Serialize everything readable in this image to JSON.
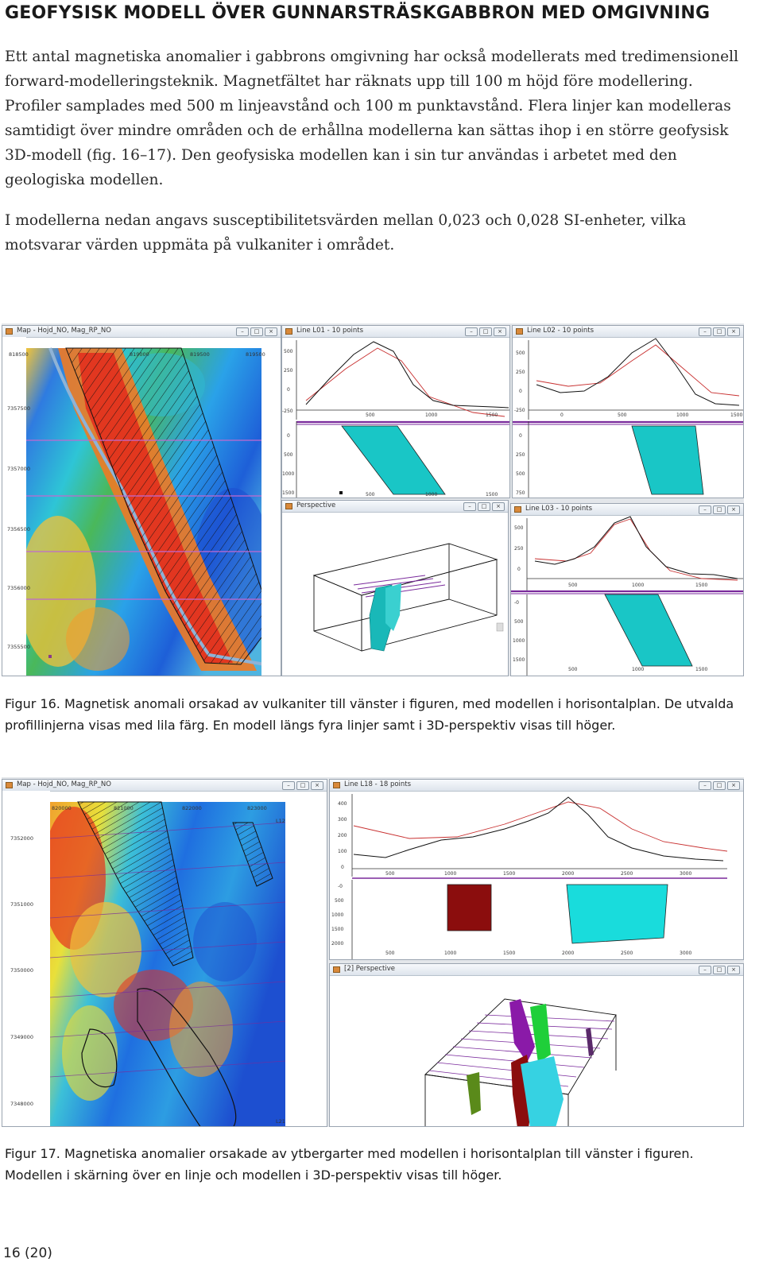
{
  "heading": "GEOFYSISK MODELL ÖVER GUNNARSTRÄSKGABBRON MED OMGIVNING",
  "paragraphs": [
    "Ett antal magnetiska anomalier i gabbrons omgivning har också modellerats med tredimensionell forward-modelleringsteknik. Magnetfältet har räknats upp till 100 m höjd före modellering. Profiler samplades med 500 m linjeavstånd och 100 m punktavstånd. Flera linjer kan modelleras samtidigt över mindre områden och de erhållna modellerna kan sättas ihop i en större geofysisk 3D-modell (fig. 16–17). Den geofysiska modellen kan i sin tur användas i arbetet med den geologiska modellen.",
    "I modellerna nedan angavs susceptibilitetsvärden mellan 0,023 och 0,028 SI-enheter, vilka motsvarar värden uppmäta på vulkaniter i området."
  ],
  "figure16": {
    "caption": "Figur 16. Magnetisk anomali orsakad av vulkaniter till vänster i figuren, med modellen i horisontalplan. De utvalda profillinjerna visas med lila färg. En modell längs fyra linjer samt i 3D-perspektiv visas till höger.",
    "map": {
      "title": "Map - Hojd_NO, Mag_RP_NO",
      "x_ticks": [
        "818500",
        "819000",
        "819500",
        "819500"
      ],
      "y_ticks": [
        "7357500",
        "7357000",
        "7356500",
        "7356000",
        "7355500"
      ]
    },
    "line01": {
      "title": "Line L01 - 10 points",
      "top_y_ticks": [
        "500",
        "250",
        "0",
        "-250"
      ],
      "top_x_ticks": [
        "500",
        "1000",
        "1500"
      ],
      "bottom_y_ticks": [
        "0",
        "500",
        "1000",
        "1500"
      ],
      "bottom_x_ticks": [
        "0",
        "500",
        "1000",
        "1500"
      ]
    },
    "line02": {
      "title": "Line L02 - 10 points",
      "top_y_ticks": [
        "500",
        "250",
        "0",
        "-250"
      ],
      "top_x_ticks": [
        "0",
        "500",
        "1000",
        "1500"
      ],
      "bottom_y_ticks": [
        "0",
        "250",
        "500",
        "750"
      ],
      "bottom_x_ticks": [
        "0",
        "500",
        "1000",
        "1500"
      ]
    },
    "line03": {
      "title": "Line L03 - 10 points",
      "top_y_ticks": [
        "500",
        "250",
        "0"
      ],
      "top_x_ticks": [
        "500",
        "1000",
        "1500"
      ],
      "bottom_y_ticks": [
        "-0",
        "500",
        "1000",
        "1500"
      ],
      "bottom_x_ticks": [
        "500",
        "1000",
        "1500"
      ]
    },
    "perspective": {
      "title": "Perspective"
    }
  },
  "figure17": {
    "caption": "Figur 17. Magnetiska anomalier orsakade av ytbergarter med modellen i horisontalplan till vänster i figuren. Modellen i skärning över en linje och modellen i 3D-perspektiv visas till höger.",
    "map": {
      "title": "Map - Hojd_NO, Mag_RP_NO",
      "x_ticks": [
        "820000",
        "821000",
        "822000",
        "823000"
      ],
      "y_ticks": [
        "7352000",
        "7351000",
        "7350000",
        "7349000",
        "7348000"
      ],
      "line_labels": [
        "L12",
        "L21"
      ]
    },
    "line18": {
      "title": "Line L18 - 18 points",
      "top_y_ticks": [
        "400",
        "300",
        "200",
        "100",
        "0"
      ],
      "top_x_ticks": [
        "500",
        "1000",
        "1500",
        "2000",
        "2500",
        "3000"
      ],
      "bottom_y_ticks": [
        "-0",
        "500",
        "1000",
        "1500",
        "2000"
      ],
      "bottom_x_ticks": [
        "500",
        "1000",
        "1500",
        "2000",
        "2500",
        "3000"
      ]
    },
    "perspective": {
      "title": "[2] Perspective"
    }
  },
  "folio": "16 (20)",
  "colors": {
    "model_cyan": "#19c6c6",
    "model_darkred": "#8b0d0d",
    "profile_purple": "#7a2a9c",
    "observed_black": "#111111",
    "calculated_red": "#c83030"
  }
}
